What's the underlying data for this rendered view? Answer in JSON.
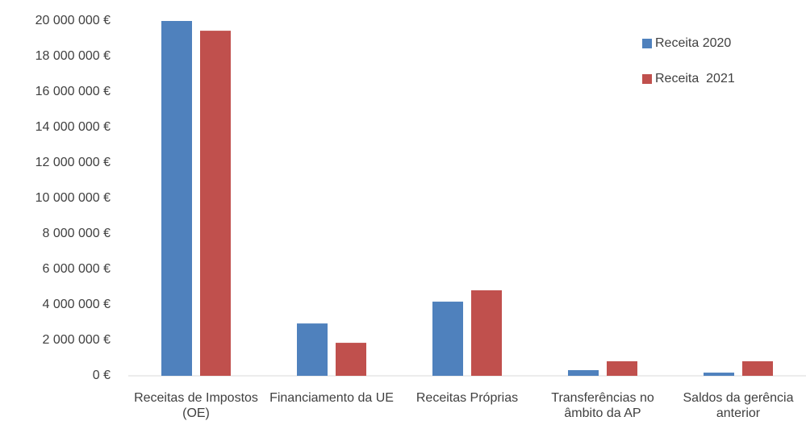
{
  "chart_data": {
    "type": "bar",
    "categories": [
      "Receitas de Impostos (OE)",
      "Financiamento da UE",
      "Receitas Próprias",
      "Transferências no âmbito da AP",
      "Saldos da gerência anterior"
    ],
    "series": [
      {
        "name": "Receita 2020",
        "color": "#4f81bd",
        "values": [
          20000000,
          2950000,
          4180000,
          320000,
          180000
        ]
      },
      {
        "name": "Receita  2021",
        "color": "#c0504d",
        "values": [
          19450000,
          1860000,
          4820000,
          820000,
          820000
        ]
      }
    ],
    "ylim": [
      0,
      20000000
    ],
    "yticks": [
      {
        "value": 0,
        "label": "0 €"
      },
      {
        "value": 2000000,
        "label": "2 000 000 €"
      },
      {
        "value": 4000000,
        "label": "4 000 000 €"
      },
      {
        "value": 6000000,
        "label": "6 000 000 €"
      },
      {
        "value": 8000000,
        "label": "8 000 000 €"
      },
      {
        "value": 10000000,
        "label": "10 000 000 €"
      },
      {
        "value": 12000000,
        "label": "12 000 000 €"
      },
      {
        "value": 14000000,
        "label": "14 000 000 €"
      },
      {
        "value": 16000000,
        "label": "16 000 000 €"
      },
      {
        "value": 18000000,
        "label": "18 000 000 €"
      },
      {
        "value": 20000000,
        "label": "20 000 000 €"
      }
    ],
    "grid": false,
    "legend": "top-right"
  }
}
